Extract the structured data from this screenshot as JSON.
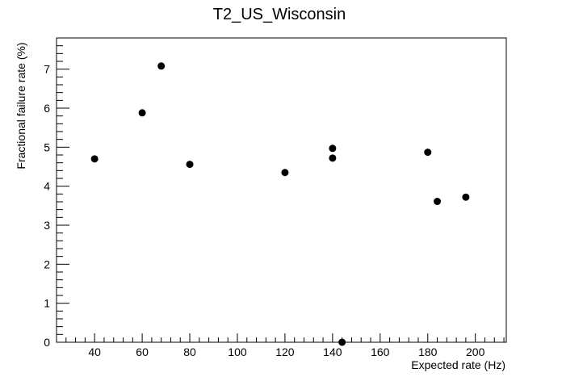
{
  "chart_data": {
    "type": "scatter",
    "title": "T2_US_Wisconsin",
    "xlabel": "Expected rate (Hz)",
    "ylabel": "Fractional failure rate (%)",
    "xlim": [
      24,
      213
    ],
    "ylim": [
      0,
      7.8
    ],
    "x_ticks": [
      40,
      60,
      80,
      100,
      120,
      140,
      160,
      180,
      200
    ],
    "y_ticks": [
      0,
      1,
      2,
      3,
      4,
      5,
      6,
      7
    ],
    "grid": false,
    "points": [
      {
        "x": 40,
        "y": 4.7
      },
      {
        "x": 60,
        "y": 5.88
      },
      {
        "x": 68,
        "y": 7.08
      },
      {
        "x": 80,
        "y": 4.56
      },
      {
        "x": 120,
        "y": 4.35
      },
      {
        "x": 140,
        "y": 4.97
      },
      {
        "x": 140,
        "y": 4.72
      },
      {
        "x": 144,
        "y": 0.0
      },
      {
        "x": 180,
        "y": 4.87
      },
      {
        "x": 184,
        "y": 3.61
      },
      {
        "x": 196,
        "y": 3.72
      }
    ],
    "color": "#000000"
  }
}
